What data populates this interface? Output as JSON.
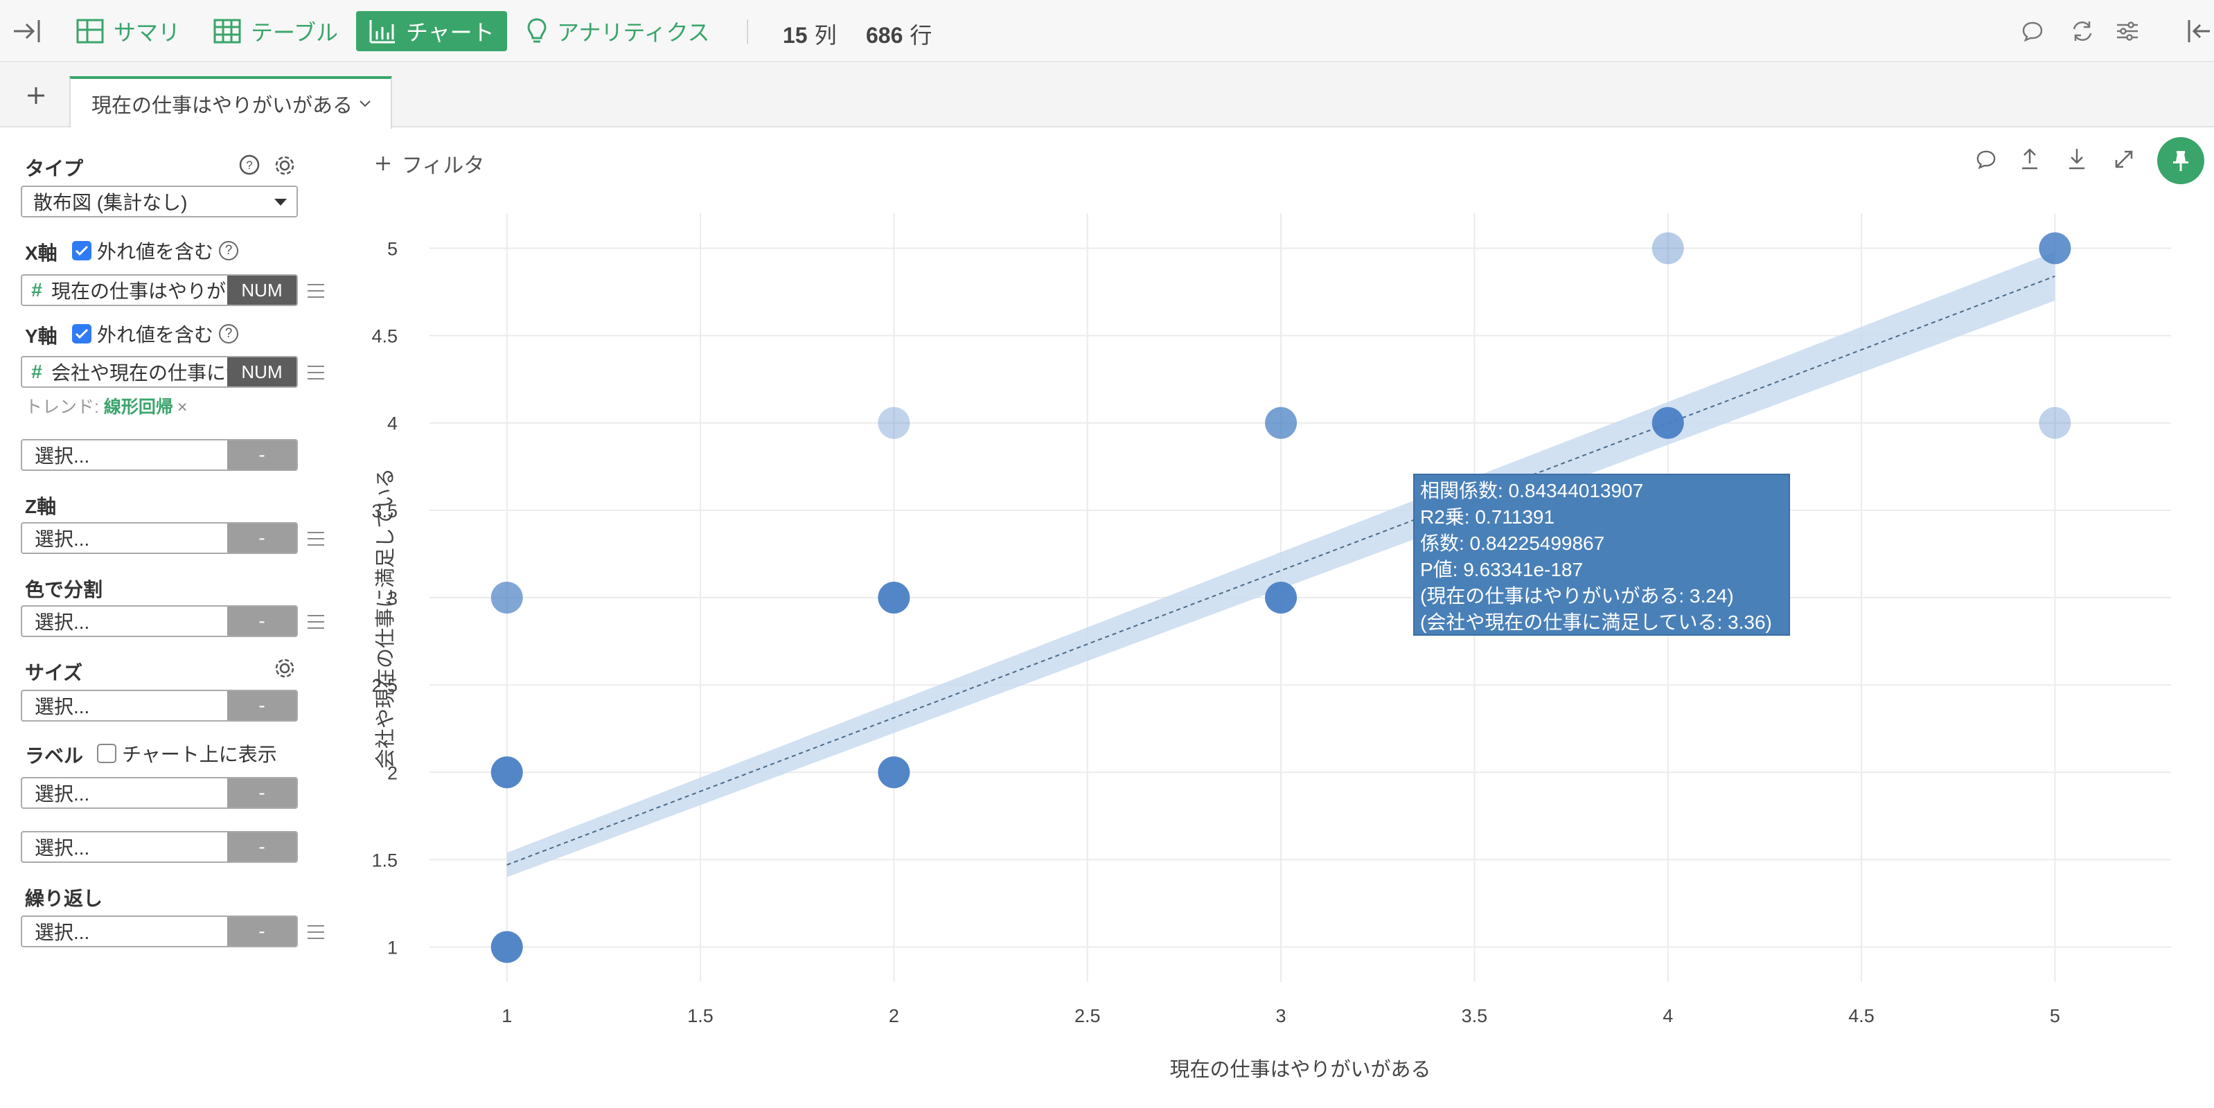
{
  "toolbar": {
    "nav": [
      {
        "label": "サマリ",
        "icon": "summary-grid-icon"
      },
      {
        "label": "テーブル",
        "icon": "table-icon"
      },
      {
        "label": "チャート",
        "icon": "bar-chart-icon",
        "active": true
      },
      {
        "label": "アナリティクス",
        "icon": "lightbulb-icon"
      }
    ],
    "columns_count": "15",
    "columns_unit": "列",
    "rows_count": "686",
    "rows_unit": "行"
  },
  "tabs": {
    "add_label": "+",
    "active_tab": "現在の仕事はやりがいがある"
  },
  "sidebar": {
    "type_label": "タイプ",
    "type_value": "散布図 (集計なし)",
    "x_axis": {
      "label": "X軸",
      "include_outliers": "外れ値を含む",
      "checked": true,
      "field": "現在の仕事はやりがいがある",
      "badge": "NUM"
    },
    "y_axis": {
      "label": "Y軸",
      "include_outliers": "外れ値を含む",
      "checked": true,
      "field": "会社や現在の仕事に満足している",
      "badge": "NUM"
    },
    "trend_prefix": "トレンド:",
    "trend_value": "線形回帰",
    "trend_remove": "×",
    "extra_select": {
      "placeholder": "選択...",
      "value": "-"
    },
    "z_axis": {
      "label": "Z軸",
      "placeholder": "選択...",
      "value": "-"
    },
    "color_split": {
      "label": "色で分割",
      "placeholder": "選択...",
      "value": "-"
    },
    "size": {
      "label": "サイズ",
      "placeholder": "選択...",
      "value": "-"
    },
    "label": {
      "label": "ラベル",
      "show_on_chart": "チャート上に表示",
      "checked": false,
      "placeholder": "選択...",
      "value": "-"
    },
    "label2": {
      "placeholder": "選択...",
      "value": "-"
    },
    "repeat": {
      "label": "繰り返し",
      "placeholder": "選択...",
      "value": "-"
    }
  },
  "chart_header": {
    "filter_label": "フィルタ"
  },
  "colors": {
    "accent": "#3aa56a",
    "point": "#4a80c4",
    "trend_band": "#c9dcef",
    "tooltip_bg": "#4a80b8"
  },
  "chart_data": {
    "type": "scatter",
    "xlabel": "現在の仕事はやりがいがある",
    "ylabel": "会社や現在の仕事に満足している",
    "xlim": [
      0.8,
      5.3
    ],
    "ylim": [
      0.8,
      5.2
    ],
    "x_ticks": [
      "1",
      "1.5",
      "2",
      "2.5",
      "3",
      "3.5",
      "4",
      "4.5",
      "5"
    ],
    "y_ticks": [
      "1",
      "1.5",
      "2",
      "2.5",
      "3",
      "3.5",
      "4",
      "4.5",
      "5"
    ],
    "grid": true,
    "points": [
      {
        "x": 1,
        "y": 1,
        "opacity": 0.95
      },
      {
        "x": 1,
        "y": 2,
        "opacity": 0.95
      },
      {
        "x": 1,
        "y": 3,
        "opacity": 0.7
      },
      {
        "x": 2,
        "y": 2,
        "opacity": 0.95
      },
      {
        "x": 2,
        "y": 3,
        "opacity": 0.95
      },
      {
        "x": 2,
        "y": 4,
        "opacity": 0.35
      },
      {
        "x": 3,
        "y": 3,
        "opacity": 0.95
      },
      {
        "x": 3,
        "y": 4,
        "opacity": 0.75
      },
      {
        "x": 4,
        "y": 4,
        "opacity": 0.95
      },
      {
        "x": 4,
        "y": 5,
        "opacity": 0.4
      },
      {
        "x": 5,
        "y": 4,
        "opacity": 0.35
      },
      {
        "x": 5,
        "y": 5,
        "opacity": 0.85
      }
    ],
    "trend": {
      "type": "linear",
      "x": [
        1,
        5
      ],
      "y": [
        1.47,
        4.84
      ],
      "band": 0.07
    },
    "tooltip": [
      "相関係数: 0.84344013907",
      "R2乗: 0.711391",
      "係数: 0.84225499867",
      "P値: 9.63341e-187",
      "(現在の仕事はやりがいがある: 3.24)",
      "(会社や現在の仕事に満足している: 3.36)"
    ]
  }
}
